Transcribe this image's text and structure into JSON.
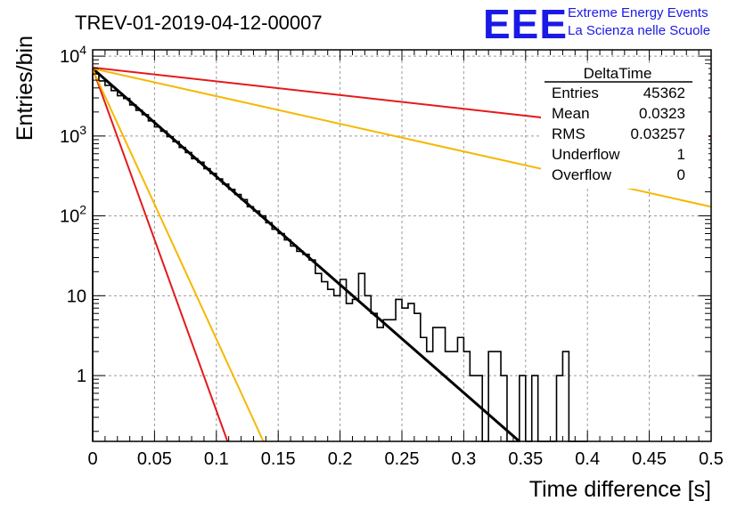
{
  "header": {
    "title": "TREV-01-2019-04-12-00007",
    "logo_text": "EEE",
    "logo_line1": "Extreme Energy Events",
    "logo_line2": "La Scienza nelle Scuole"
  },
  "stats_box": {
    "name": "DeltaTime",
    "rows": [
      {
        "label": "Entries",
        "value": "45362"
      },
      {
        "label": "Mean",
        "value": "0.0323"
      },
      {
        "label": "RMS",
        "value": "0.03257"
      },
      {
        "label": "Underflow",
        "value": "1"
      },
      {
        "label": "Overflow",
        "value": "0"
      }
    ]
  },
  "chart_data": {
    "type": "line",
    "title": "TREV-01-2019-04-12-00007",
    "xlabel": "Time difference [s]",
    "ylabel": "Entries/bin",
    "xlim": [
      0,
      0.5
    ],
    "ylim": [
      0.15,
      12000
    ],
    "yscale": "log",
    "grid": true,
    "x_ticks": [
      0,
      0.05,
      0.1,
      0.15,
      0.2,
      0.25,
      0.3,
      0.35,
      0.4,
      0.45,
      0.5
    ],
    "x_tick_labels": [
      "0",
      "0.05",
      "0.1",
      "0.15",
      "0.2",
      "0.25",
      "0.3",
      "0.35",
      "0.4",
      "0.45",
      "0.5"
    ],
    "y_ticks": [
      1,
      10,
      100,
      1000,
      10000
    ],
    "y_tick_labels": [
      "1",
      "10",
      "10^2",
      "10^3",
      "10^4"
    ],
    "histogram": {
      "bin_width": 0.005,
      "counts": [
        6000,
        4900,
        4300,
        3700,
        3200,
        2950,
        2450,
        2100,
        1850,
        1550,
        1300,
        1150,
        980,
        850,
        720,
        620,
        520,
        470,
        390,
        340,
        290,
        250,
        215,
        185,
        160,
        130,
        115,
        100,
        82,
        68,
        60,
        50,
        42,
        36,
        33,
        28,
        19,
        15,
        12,
        10,
        16,
        8,
        9,
        19,
        10,
        6,
        4,
        5,
        5,
        9,
        7,
        8,
        6,
        3,
        2,
        4,
        4,
        2,
        2,
        3,
        2,
        1,
        1,
        0,
        2,
        2,
        1,
        0,
        0,
        1,
        0,
        1,
        0,
        0,
        0,
        1,
        2,
        0,
        0,
        0
      ]
    },
    "lines": [
      {
        "color": "#000000",
        "x": [
          0,
          0.345
        ],
        "y": [
          7000,
          0.15
        ]
      },
      {
        "color": "#e41a1c",
        "x": [
          0,
          0.5
        ],
        "y": [
          7200,
          990
        ]
      },
      {
        "color": "#f5b800",
        "x": [
          0,
          0.5
        ],
        "y": [
          7000,
          130
        ]
      },
      {
        "color": "#e41a1c",
        "x": [
          0,
          0.109
        ],
        "y": [
          7000,
          0.15
        ]
      },
      {
        "color": "#f5b800",
        "x": [
          0,
          0.138
        ],
        "y": [
          6800,
          0.15
        ]
      }
    ]
  }
}
